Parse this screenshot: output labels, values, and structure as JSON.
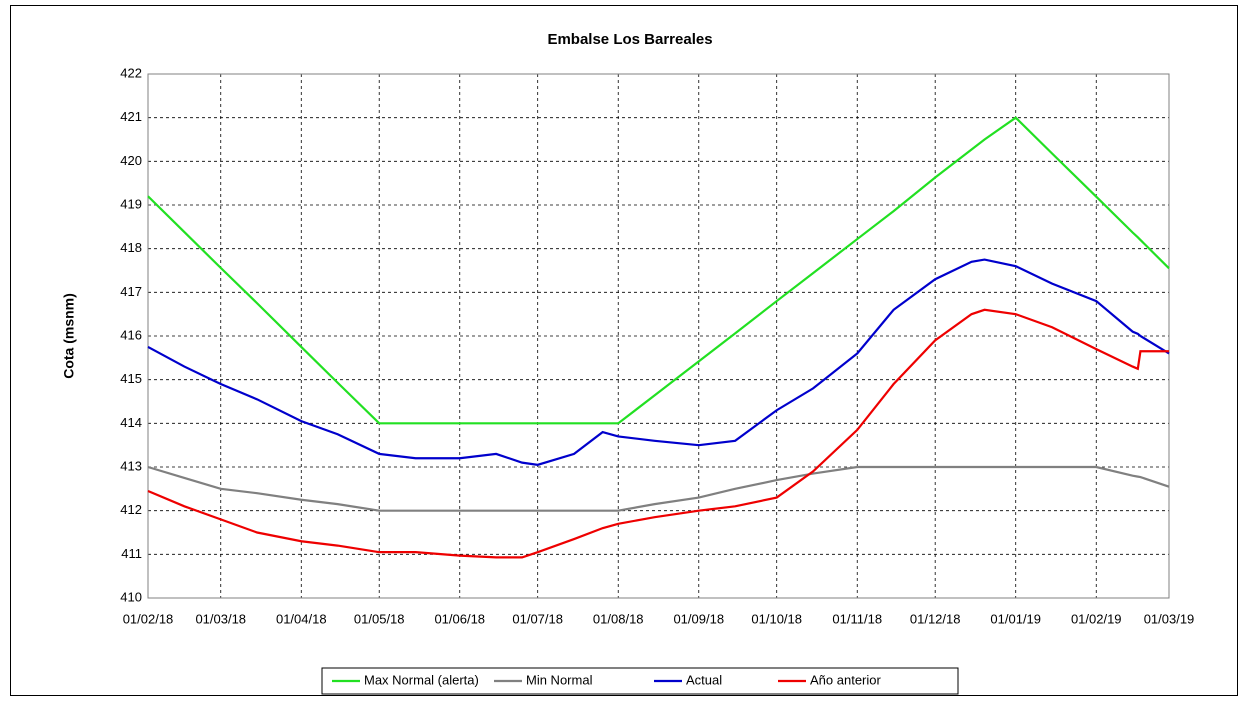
{
  "chart_data": {
    "type": "line",
    "title": "Embalse Los Barreales",
    "y_label": "Cota (msnm)",
    "x": [
      "01/02/18",
      "15/02/18",
      "01/03/18",
      "15/03/18",
      "01/04/18",
      "15/04/18",
      "01/05/18",
      "15/05/18",
      "01/06/18",
      "15/06/18",
      "25/06/18",
      "01/07/18",
      "15/07/18",
      "26/07/18",
      "01/08/18",
      "15/08/18",
      "01/09/18",
      "15/09/18",
      "01/10/18",
      "15/10/18",
      "01/11/18",
      "15/11/18",
      "01/12/18",
      "15/12/18",
      "20/12/18",
      "01/01/19",
      "15/01/19",
      "01/02/19",
      "15/02/19",
      "17/02/19",
      "18/02/19",
      "01/03/19"
    ],
    "series": [
      {
        "name": "Max Normal (alerta)",
        "color": "#22e022",
        "values": [
          419.2,
          418.38,
          417.56,
          416.75,
          415.75,
          414.93,
          414,
          414,
          414,
          414,
          414,
          414,
          414,
          414,
          414,
          414.64,
          415.42,
          416.06,
          416.8,
          417.44,
          418.22,
          418.86,
          419.63,
          420.27,
          420.5,
          421,
          420.18,
          419.19,
          418.37,
          418.26,
          418.2,
          417.55
        ]
      },
      {
        "name": "Min Normal",
        "color": "#808080",
        "values": [
          413,
          412.75,
          412.5,
          412.4,
          412.25,
          412.15,
          412,
          412,
          412,
          412,
          412,
          412,
          412,
          412,
          412,
          412.15,
          412.3,
          412.5,
          412.7,
          412.85,
          413,
          413,
          413,
          413,
          413,
          413,
          413,
          413,
          412.8,
          412.78,
          412.77,
          412.55
        ]
      },
      {
        "name": "Actual",
        "color": "#0000cc",
        "values": [
          415.75,
          415.3,
          414.9,
          414.55,
          414.05,
          413.75,
          413.3,
          413.2,
          413.2,
          413.3,
          413.1,
          413.05,
          413.3,
          413.8,
          413.7,
          413.6,
          413.5,
          413.6,
          414.3,
          414.8,
          415.6,
          416.6,
          417.3,
          417.7,
          417.75,
          417.6,
          417.2,
          416.8,
          416.1,
          416.05,
          416.0,
          415.6
        ]
      },
      {
        "name": "Año anterior",
        "color": "#ee0000",
        "values": [
          412.45,
          412.1,
          411.8,
          411.5,
          411.3,
          411.2,
          411.05,
          411.05,
          410.97,
          410.93,
          410.93,
          411.05,
          411.35,
          411.6,
          411.7,
          411.85,
          412.0,
          412.1,
          412.3,
          412.9,
          413.85,
          414.9,
          415.9,
          416.5,
          416.6,
          416.5,
          416.2,
          415.7,
          415.3,
          415.25,
          415.65,
          415.65
        ]
      }
    ],
    "xlim": [
      "01/02/18",
      "01/03/19"
    ],
    "xticks": [
      "01/02/18",
      "01/03/18",
      "01/04/18",
      "01/05/18",
      "01/06/18",
      "01/07/18",
      "01/08/18",
      "01/09/18",
      "01/10/18",
      "01/11/18",
      "01/12/18",
      "01/01/19",
      "01/02/19",
      "01/03/19"
    ],
    "ylim": [
      410,
      422
    ],
    "yticks": [
      410,
      411,
      412,
      413,
      414,
      415,
      416,
      417,
      418,
      419,
      420,
      421,
      422
    ],
    "grid": true,
    "legend": "bottom"
  }
}
